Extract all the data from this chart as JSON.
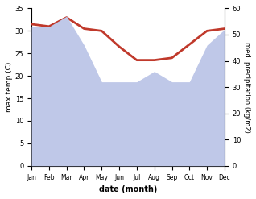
{
  "months": [
    "Jan",
    "Feb",
    "Mar",
    "Apr",
    "May",
    "Jun",
    "Jul",
    "Aug",
    "Sep",
    "Oct",
    "Nov",
    "Dec"
  ],
  "month_positions": [
    0,
    1,
    2,
    3,
    4,
    5,
    6,
    7,
    8,
    9,
    10,
    11
  ],
  "temp": [
    31.5,
    31.0,
    33.0,
    30.5,
    30.0,
    26.5,
    23.5,
    23.5,
    24.0,
    27.0,
    30.0,
    30.5
  ],
  "precip": [
    53.0,
    53.0,
    57.0,
    46.0,
    32.0,
    32.0,
    32.0,
    36.0,
    32.0,
    32.0,
    46.0,
    52.0
  ],
  "temp_color": "#c0392b",
  "precip_fill_color": "#bfc8e8",
  "ylim_temp": [
    0,
    35
  ],
  "ylim_precip": [
    0,
    60
  ],
  "ylabel_left": "max temp (C)",
  "ylabel_right": "med. precipitation (kg/m2)",
  "xlabel": "date (month)",
  "bg_color": "#ffffff",
  "temp_linewidth": 2.0
}
